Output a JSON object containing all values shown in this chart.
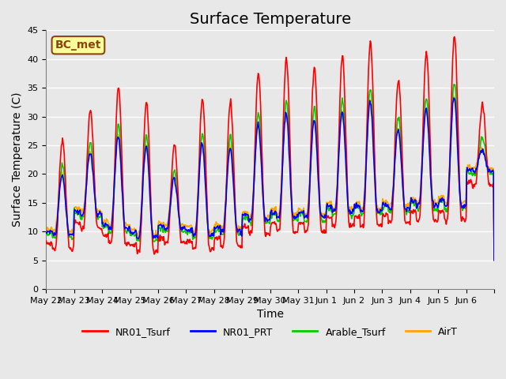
{
  "title": "Surface Temperature",
  "xlabel": "Time",
  "ylabel": "Surface Temperature (C)",
  "ylim": [
    0,
    45
  ],
  "yticks": [
    0,
    5,
    10,
    15,
    20,
    25,
    30,
    35,
    40,
    45
  ],
  "annotation_text": "BC_met",
  "annotation_color": "#8B4513",
  "annotation_bg": "#FFFF99",
  "bg_color": "#E8E8E8",
  "series_colors": {
    "NR01_Tsurf": "#FF0000",
    "NR01_PRT": "#0000FF",
    "Arable_Tsurf": "#00CC00",
    "AirT": "#FFA500"
  },
  "line_width": 1.2,
  "n_days": 16,
  "xtick_positions": [
    0,
    1,
    2,
    3,
    4,
    5,
    6,
    7,
    8,
    9,
    10,
    11,
    12,
    13,
    14,
    15,
    16
  ],
  "xtick_labels": [
    "May 22",
    "May 23",
    "May 24",
    "May 25",
    "May 26",
    "May 27",
    "May 28",
    "May 29",
    "May 30",
    "May 31",
    "Jun 1",
    "Jun 2",
    "Jun 3",
    "Jun 4",
    "Jun 5",
    "Jun 6",
    ""
  ],
  "base_mins": [
    7,
    10.5,
    8,
    6.5,
    8,
    7,
    7.5,
    9.5,
    10,
    10,
    11,
    11,
    11.5,
    12,
    12,
    18
  ],
  "base_maxs": [
    26,
    31,
    35,
    32.5,
    25,
    33,
    32.5,
    37.5,
    40,
    38.5,
    40.5,
    43,
    36.5,
    41,
    44,
    32
  ],
  "title_fontsize": 14,
  "label_fontsize": 10,
  "tick_fontsize": 8,
  "legend_fontsize": 9
}
